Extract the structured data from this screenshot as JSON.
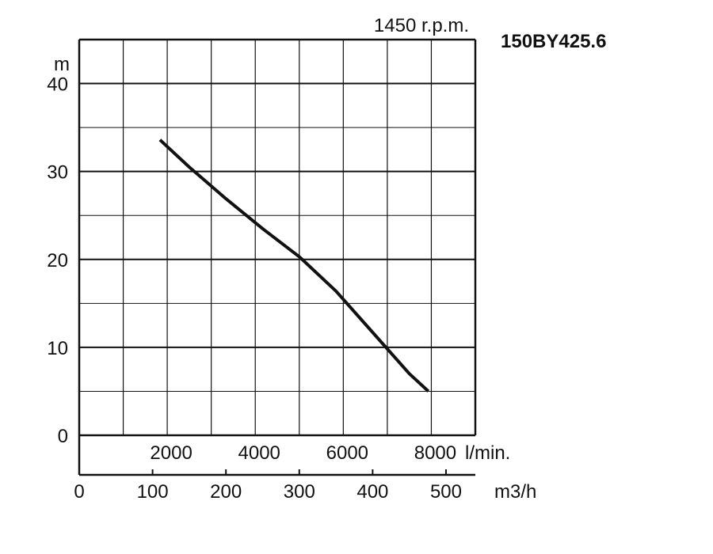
{
  "chart_data": {
    "type": "line",
    "model": "150BY425.6",
    "speed": "1450 r.p.m.",
    "ylabel": "m",
    "ylim": [
      0,
      45
    ],
    "y_ticks": [
      0,
      10,
      20,
      30,
      40
    ],
    "x_lmin_unit": "l/min.",
    "x_lmin_ticks": [
      2000,
      4000,
      6000,
      8000
    ],
    "x_m3h_unit": "m3/h",
    "xlim_m3h": [
      0,
      540
    ],
    "x_m3h_ticks": [
      0,
      100,
      200,
      300,
      400,
      500
    ],
    "grid": true,
    "series": [
      {
        "color": "#111111",
        "x": [
          110,
          150,
          200,
          250,
          300,
          350,
          400,
          450,
          476
        ],
        "y": [
          33.6,
          30.5,
          26.9,
          23.5,
          20.3,
          16.4,
          11.7,
          7.0,
          5.0
        ]
      }
    ]
  }
}
